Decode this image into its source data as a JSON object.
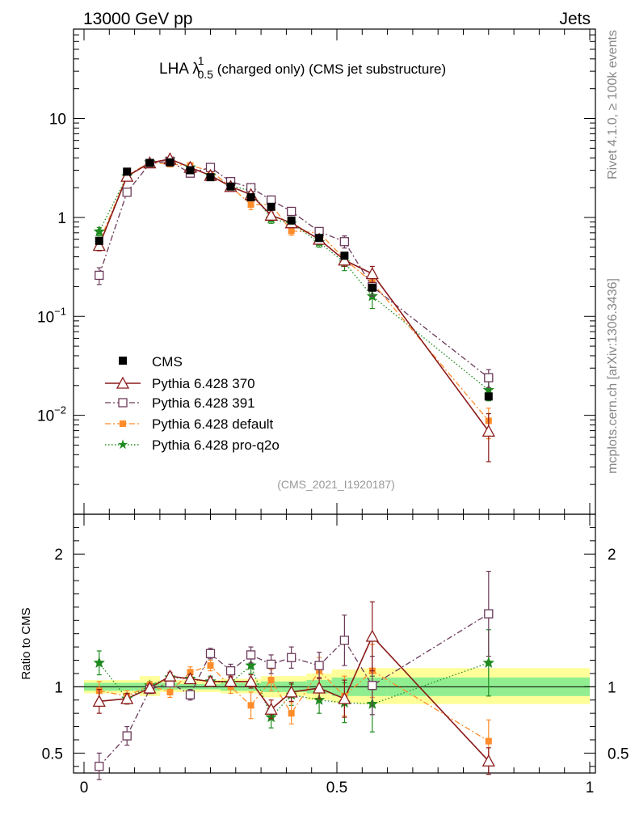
{
  "header": {
    "left": "13000 GeV pp",
    "right": "Jets"
  },
  "side": {
    "top": "Rivet 4.1.0, ≥ 100k events",
    "bottom": "mcplots.cern.ch [arXiv:1306.3436]"
  },
  "title": {
    "prefix": "LHA λ",
    "sup": "1",
    "sub": "0.5",
    "suffix": " (charged only) (CMS jet substructure)"
  },
  "analysis_label": "(CMS_2021_I1920187)",
  "ratio_ylabel": "Ratio to CMS",
  "colors": {
    "cms": "#000000",
    "p370": "#8b1a1a",
    "p391": "#6b3a5a",
    "pdef": "#ff8c2a",
    "pq2o": "#1f8a1f",
    "band_inner": "#90ee90",
    "band_outer": "#ffff99"
  },
  "chart_data": [
    {
      "type": "scatter",
      "panel": "main",
      "yscale": "log",
      "xlim": [
        0,
        1
      ],
      "ylim": [
        0.001,
        80
      ],
      "y_ticks": [
        {
          "value": 10,
          "label": "10"
        },
        {
          "value": 1,
          "label": "1"
        },
        {
          "value": 0.1,
          "base": "10",
          "exp": "−1"
        },
        {
          "value": 0.01,
          "base": "10",
          "exp": "−2"
        }
      ],
      "x": [
        0.03,
        0.085,
        0.13,
        0.17,
        0.21,
        0.25,
        0.29,
        0.33,
        0.37,
        0.41,
        0.465,
        0.515,
        0.57,
        0.8
      ],
      "series": [
        {
          "name": "CMS",
          "key": "cms",
          "marker": "square-filled",
          "values": [
            0.58,
            2.9,
            3.55,
            3.6,
            3.0,
            2.55,
            2.05,
            1.6,
            1.28,
            0.93,
            0.62,
            0.41,
            0.195,
            0.0155
          ]
        },
        {
          "name": "Pythia 6.428 370",
          "key": "p370",
          "marker": "triangle-open",
          "line": "solid",
          "values": [
            0.52,
            2.6,
            3.55,
            3.9,
            3.2,
            2.65,
            2.05,
            1.7,
            1.05,
            0.88,
            0.6,
            0.37,
            0.27,
            0.0069
          ],
          "err": [
            0.06,
            0.1,
            0.1,
            0.1,
            0.1,
            0.08,
            0.08,
            0.08,
            0.08,
            0.06,
            0.05,
            0.05,
            0.05,
            0.0035
          ]
        },
        {
          "name": "Pythia 6.428 391",
          "key": "p391",
          "marker": "square-open",
          "line": "dashdot",
          "values": [
            0.26,
            1.8,
            3.5,
            3.7,
            2.8,
            3.2,
            2.3,
            2.0,
            1.5,
            1.15,
            0.72,
            0.57,
            0.2,
            0.024
          ],
          "err": [
            0.05,
            0.1,
            0.1,
            0.1,
            0.1,
            0.1,
            0.1,
            0.1,
            0.08,
            0.07,
            0.06,
            0.08,
            0.04,
            0.005
          ]
        },
        {
          "name": "Pythia 6.428 default",
          "key": "pdef",
          "marker": "square-filled-small",
          "line": "dashdot",
          "values": [
            0.56,
            2.65,
            3.6,
            3.45,
            3.35,
            2.95,
            2.05,
            1.35,
            1.35,
            0.73,
            0.7,
            0.38,
            0.22,
            0.0088
          ],
          "err": [
            0.06,
            0.1,
            0.1,
            0.1,
            0.1,
            0.1,
            0.08,
            0.15,
            0.1,
            0.07,
            0.06,
            0.05,
            0.04,
            0.003
          ]
        },
        {
          "name": "Pythia 6.428 pro-q2o",
          "key": "pq2o",
          "marker": "star",
          "line": "dotted",
          "values": [
            0.72,
            2.6,
            3.6,
            3.85,
            3.2,
            2.65,
            2.1,
            1.85,
            0.97,
            0.87,
            0.56,
            0.35,
            0.16,
            0.018
          ],
          "err": [
            0.07,
            0.1,
            0.1,
            0.1,
            0.1,
            0.1,
            0.08,
            0.1,
            0.1,
            0.07,
            0.06,
            0.06,
            0.04,
            0.004
          ]
        }
      ]
    },
    {
      "type": "scatter",
      "panel": "ratio",
      "xlabel": "",
      "ylabel": "Ratio to CMS",
      "xlim": [
        0,
        1
      ],
      "ylim": [
        0.35,
        2.3
      ],
      "x_ticks": [
        {
          "value": 0,
          "label": "0"
        },
        {
          "value": 0.5,
          "label": "0.5"
        },
        {
          "value": 1,
          "label": "1"
        }
      ],
      "y_ticks": [
        {
          "value": 2,
          "label": "2"
        },
        {
          "value": 1,
          "label": "1"
        },
        {
          "value": 0.5,
          "label": "0.5"
        }
      ],
      "x": [
        0.03,
        0.085,
        0.13,
        0.17,
        0.21,
        0.25,
        0.29,
        0.33,
        0.37,
        0.41,
        0.465,
        0.515,
        0.57,
        0.8
      ],
      "bands": {
        "edges": [
          0,
          0.06,
          0.11,
          0.15,
          0.19,
          0.23,
          0.27,
          0.31,
          0.35,
          0.39,
          0.44,
          0.49,
          0.54,
          0.6,
          1.0
        ],
        "inner_lo": [
          0.97,
          0.97,
          0.97,
          0.98,
          0.98,
          0.98,
          0.97,
          0.97,
          0.96,
          0.96,
          0.95,
          0.93,
          0.93,
          0.93
        ],
        "inner_hi": [
          1.03,
          1.03,
          1.03,
          1.03,
          1.02,
          1.02,
          1.03,
          1.03,
          1.04,
          1.04,
          1.05,
          1.07,
          1.07,
          1.07
        ],
        "outer_lo": [
          0.95,
          0.95,
          0.93,
          0.96,
          0.96,
          0.96,
          0.95,
          0.95,
          0.92,
          0.93,
          0.9,
          0.88,
          0.87,
          0.87
        ],
        "outer_hi": [
          1.05,
          1.05,
          1.08,
          1.05,
          1.05,
          1.05,
          1.06,
          1.06,
          1.08,
          1.08,
          1.1,
          1.13,
          1.14,
          1.14
        ]
      },
      "series": [
        {
          "key": "p370",
          "values": [
            0.89,
            0.91,
            0.99,
            1.08,
            1.06,
            1.04,
            1.04,
            1.04,
            0.83,
            0.96,
            0.99,
            0.91,
            1.38,
            0.44
          ],
          "err": [
            0.09,
            0.04,
            0.03,
            0.03,
            0.03,
            0.03,
            0.04,
            0.05,
            0.07,
            0.07,
            0.08,
            0.14,
            0.26,
            0.1
          ]
        },
        {
          "key": "p391",
          "values": [
            0.4,
            0.63,
            0.98,
            1.03,
            0.94,
            1.25,
            1.12,
            1.24,
            1.17,
            1.22,
            1.16,
            1.35,
            1.01,
            1.55
          ],
          "err": [
            0.1,
            0.07,
            0.03,
            0.03,
            0.04,
            0.04,
            0.05,
            0.06,
            0.07,
            0.08,
            0.1,
            0.19,
            0.22,
            0.32
          ]
        },
        {
          "key": "pdef",
          "values": [
            0.97,
            0.93,
            1.01,
            0.96,
            1.11,
            1.16,
            1.0,
            0.86,
            1.05,
            0.8,
            1.12,
            0.93,
            1.12,
            0.59
          ],
          "err": [
            0.07,
            0.04,
            0.03,
            0.04,
            0.04,
            0.04,
            0.05,
            0.1,
            0.08,
            0.08,
            0.1,
            0.15,
            0.2,
            0.16
          ]
        },
        {
          "key": "pq2o",
          "values": [
            1.18,
            0.91,
            1.01,
            1.07,
            1.06,
            1.04,
            1.03,
            1.16,
            0.77,
            0.94,
            0.9,
            0.88,
            0.87,
            1.18
          ],
          "err": [
            0.09,
            0.04,
            0.03,
            0.03,
            0.03,
            0.04,
            0.04,
            0.06,
            0.08,
            0.08,
            0.1,
            0.15,
            0.21,
            0.25
          ]
        }
      ]
    }
  ]
}
